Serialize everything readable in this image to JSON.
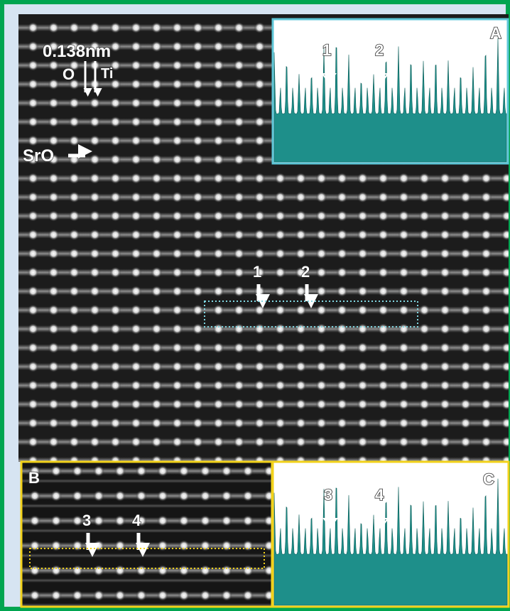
{
  "labels": {
    "scale": "0.138nm",
    "o": "O",
    "ti": "Ti",
    "sro": "SrO"
  },
  "main_markers": [
    "1",
    "2"
  ],
  "panel_a": {
    "letter": "A",
    "markers": [
      "1",
      "2"
    ]
  },
  "panel_b": {
    "letter": "B",
    "markers": [
      "3",
      "4"
    ]
  },
  "panel_c": {
    "letter": "C",
    "markers": [
      "3",
      "4"
    ]
  }
}
